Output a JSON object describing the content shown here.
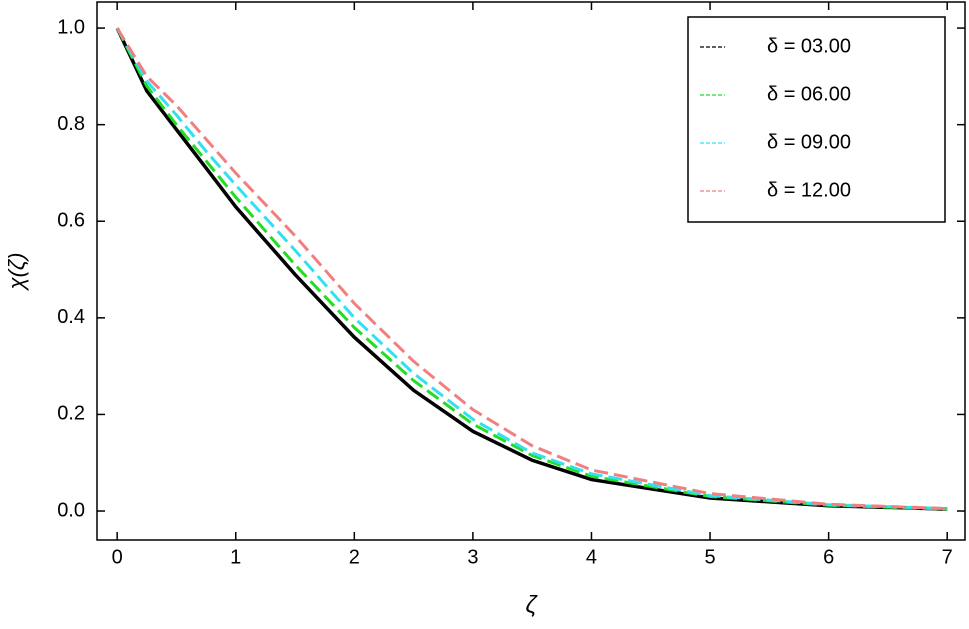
{
  "chart_data": {
    "type": "line",
    "xlabel": "ζ",
    "ylabel": "χ(ζ)",
    "x": [
      0,
      0.25,
      0.5,
      0.75,
      1,
      1.5,
      2,
      2.5,
      3,
      3.5,
      4,
      5,
      6,
      7
    ],
    "series": [
      {
        "name": "δ = 03.00",
        "color": "#000000",
        "dash": "solid",
        "values": [
          1,
          0.87,
          0.79,
          0.71,
          0.63,
          0.49,
          0.36,
          0.25,
          0.165,
          0.105,
          0.065,
          0.027,
          0.011,
          0.004
        ]
      },
      {
        "name": "δ = 06.00",
        "color": "#22dd22",
        "dash": "dashed",
        "values": [
          1,
          0.88,
          0.8,
          0.725,
          0.65,
          0.51,
          0.38,
          0.27,
          0.18,
          0.115,
          0.072,
          0.03,
          0.012,
          0.004
        ]
      },
      {
        "name": "δ = 09.00",
        "color": "#33e0f0",
        "dash": "dashed",
        "values": [
          1,
          0.89,
          0.82,
          0.745,
          0.675,
          0.54,
          0.4,
          0.285,
          0.19,
          0.12,
          0.077,
          0.032,
          0.013,
          0.005
        ]
      },
      {
        "name": "δ = 12.00",
        "color": "#f08080",
        "dash": "dashed",
        "values": [
          1,
          0.9,
          0.84,
          0.77,
          0.7,
          0.57,
          0.43,
          0.31,
          0.21,
          0.135,
          0.085,
          0.036,
          0.014,
          0.005
        ]
      }
    ],
    "xlim": [
      -0.17,
      7.15
    ],
    "ylim": [
      -0.06,
      1.054
    ],
    "xticks": [
      0,
      1,
      2,
      3,
      4,
      5,
      6,
      7
    ],
    "yticks": [
      {
        "value": 0,
        "label": "0.0"
      },
      {
        "value": 0.2,
        "label": "0.2"
      },
      {
        "value": 0.4,
        "label": "0.4"
      },
      {
        "value": 0.6,
        "label": "0.6"
      },
      {
        "value": 0.8,
        "label": "0.8"
      },
      {
        "value": 1,
        "label": "1.0"
      }
    ],
    "legend": "upper right",
    "grid": false
  }
}
